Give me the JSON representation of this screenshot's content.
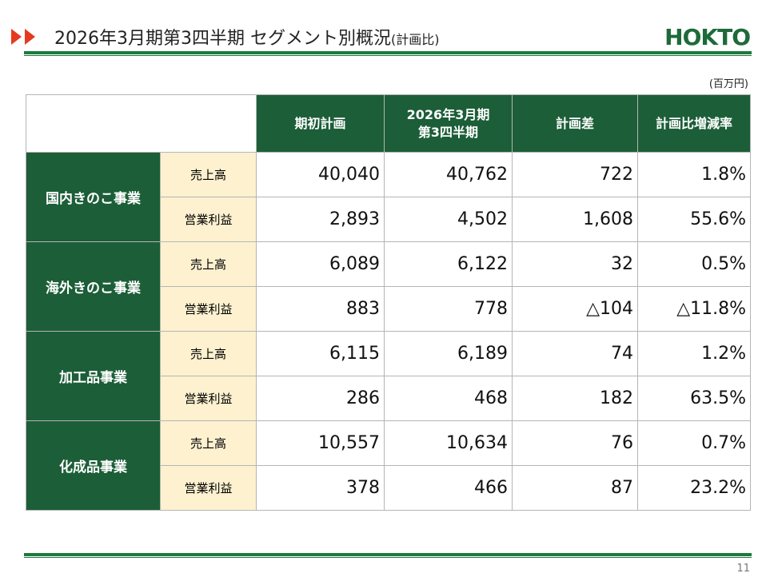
{
  "header": {
    "title": "2026年3月期第3四半期 セグメント別概況",
    "title_note": "(計画比)",
    "logo": "HOKTO"
  },
  "unit": "(百万円)",
  "table": {
    "columns": [
      [
        "期初計画"
      ],
      [
        "2026年3月期",
        "第3四半期"
      ],
      [
        "計画差"
      ],
      [
        "計画比増減率"
      ]
    ],
    "segments": [
      {
        "name": "国内きのこ事業",
        "rows": [
          {
            "item": "売上高",
            "values": [
              "40,040",
              "40,762",
              "722",
              "1.8%"
            ]
          },
          {
            "item": "営業利益",
            "values": [
              "2,893",
              "4,502",
              "1,608",
              "55.6%"
            ]
          }
        ]
      },
      {
        "name": "海外きのこ事業",
        "rows": [
          {
            "item": "売上高",
            "values": [
              "6,089",
              "6,122",
              "32",
              "0.5%"
            ]
          },
          {
            "item": "営業利益",
            "values": [
              "883",
              "778",
              "△104",
              "△11.8%"
            ]
          }
        ]
      },
      {
        "name": "加工品事業",
        "rows": [
          {
            "item": "売上高",
            "values": [
              "6,115",
              "6,189",
              "74",
              "1.2%"
            ]
          },
          {
            "item": "営業利益",
            "values": [
              "286",
              "468",
              "182",
              "63.5%"
            ]
          }
        ]
      },
      {
        "name": "化成品事業",
        "rows": [
          {
            "item": "売上高",
            "values": [
              "10,557",
              "10,634",
              "76",
              "0.7%"
            ]
          },
          {
            "item": "営業利益",
            "values": [
              "378",
              "466",
              "87",
              "23.2%"
            ]
          }
        ]
      }
    ]
  },
  "page_number": "11"
}
